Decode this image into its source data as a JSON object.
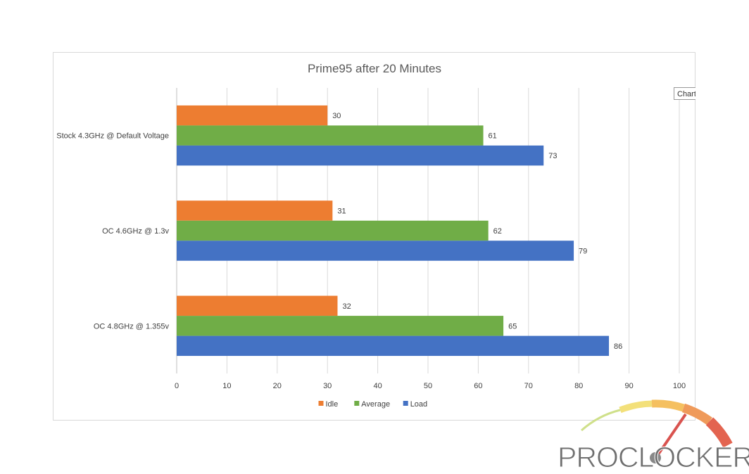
{
  "chart_data": {
    "type": "bar",
    "orientation": "horizontal",
    "title": "Prime95 after 20 Minutes",
    "categories": [
      "Stock 4.3GHz @ Default Voltage",
      "OC 4.6GHz @ 1.3v",
      "OC 4.8GHz @ 1.355v"
    ],
    "series": [
      {
        "name": "Idle",
        "color": "#ED7D31",
        "values": [
          30,
          31,
          32
        ]
      },
      {
        "name": "Average",
        "color": "#70AD47",
        "values": [
          61,
          62,
          65
        ]
      },
      {
        "name": "Load",
        "color": "#4472C4",
        "values": [
          73,
          79,
          86
        ]
      }
    ],
    "xlim": [
      0,
      100
    ],
    "xticks": [
      0,
      10,
      20,
      30,
      40,
      50,
      60,
      70,
      80,
      90,
      100
    ],
    "grid": true,
    "legend_position": "bottom",
    "data_labels": true
  },
  "tooltip": {
    "text": "Chart"
  },
  "watermark": {
    "text": "PROCLOCKERS"
  },
  "colors": {
    "gridline": "#d9d9d9",
    "axis": "#bfbfbf",
    "watermark_text": "#6f6f6f"
  }
}
